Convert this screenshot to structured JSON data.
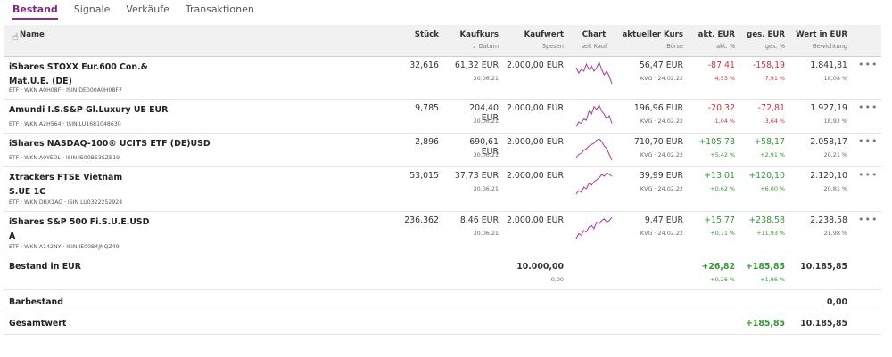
{
  "tabs": [
    "Bestand",
    "Signale",
    "Verkäufe",
    "Transaktionen"
  ],
  "columns": {
    "name": "Name",
    "stueck": "Stück",
    "kaufkurs": "Kaufkurs",
    "kaufkurs_sub": "Datum",
    "kaufwert": "Kaufwert",
    "kaufwert_sub": "Spesen",
    "chart": "Chart",
    "chart_sub": "seit Kauf",
    "kurs": "aktueller Kurs",
    "kurs_sub": "Börse",
    "akt": "akt. EUR",
    "akt_sub": "akt. %",
    "ges": "ges. EUR",
    "ges_sub": "ges. %",
    "wert": "Wert in EUR",
    "wert_sub": "Gewichtung"
  },
  "rows": [
    {
      "name": "iShares STOXX Eur.600 Con.& Mat.U.E. (DE)",
      "meta": "ETF · WKN A0H08F · ISIN DE000A0H08F7",
      "stueck": "32,616",
      "kaufkurs": "61,32 EUR",
      "datum": "30.06.21",
      "kaufwert": "2.000,00 EUR",
      "kurs": "56,47 EUR",
      "boerse": "KVG · 24.02.22",
      "akt_eur": "-87,41",
      "akt_pct": "-4,53 %",
      "ges_eur": "-158,19",
      "ges_pct": "-7,91 %",
      "wert": "1.841,81",
      "gewichtung": "18,08 %",
      "akt_sign": "neg",
      "ges_sign": "neg",
      "spark": [
        5,
        8,
        6,
        7,
        3,
        6,
        4,
        7,
        5,
        2,
        6,
        9,
        7,
        10,
        14
      ]
    },
    {
      "name": "Amundi I.S.S&P Gl.Luxury UE EUR",
      "meta": "ETF · WKN A2H564 · ISIN LU1681048630",
      "stueck": "9,785",
      "kaufkurs": "204,40 EUR",
      "datum": "30.06.21",
      "kaufwert": "2.000,00 EUR",
      "kurs": "196,96 EUR",
      "boerse": "KVG · 24.02.22",
      "akt_eur": "-20,32",
      "akt_pct": "-1,04 %",
      "ges_eur": "-72,81",
      "ges_pct": "-3,64 %",
      "wert": "1.927,19",
      "gewichtung": "18,92 %",
      "akt_sign": "neg",
      "ges_sign": "neg",
      "spark": [
        16,
        13,
        14,
        11,
        12,
        6,
        8,
        3,
        5,
        2,
        6,
        8,
        11,
        9,
        14
      ]
    },
    {
      "name": "iShares NASDAQ-100® UCITS ETF (DE)USD",
      "meta": "ETF · WKN A0YEDL · ISIN IE00B53SZB19",
      "stueck": "2,896",
      "kaufkurs": "690,61 EUR",
      "datum": "30.06.21",
      "kaufwert": "2.000,00 EUR",
      "kurs": "710,70 EUR",
      "boerse": "KVG · 24.02.22",
      "akt_eur": "+105,78",
      "akt_pct": "+5,42 %",
      "ges_eur": "+58,17",
      "ges_pct": "+2,91 %",
      "wert": "2.058,17",
      "gewichtung": "20,21 %",
      "akt_sign": "pos",
      "ges_sign": "pos",
      "spark": [
        15,
        13,
        12,
        10,
        9,
        7,
        6,
        5,
        3,
        2,
        4,
        7,
        9,
        13,
        17
      ]
    },
    {
      "name": "Xtrackers FTSE Vietnam S.UE 1C",
      "meta": "ETF · WKN DBX1AG · ISIN LU0322252924",
      "stueck": "53,015",
      "kaufkurs": "37,73 EUR",
      "datum": "30.06.21",
      "kaufwert": "2.000,00 EUR",
      "kurs": "39,99 EUR",
      "boerse": "KVG · 24.02.22",
      "akt_eur": "+13,01",
      "akt_pct": "+0,62 %",
      "ges_eur": "+120,10",
      "ges_pct": "+6,00 %",
      "wert": "2.120,10",
      "gewichtung": "20,81 %",
      "akt_sign": "pos",
      "ges_sign": "pos",
      "spark": [
        14,
        12,
        13,
        10,
        11,
        8,
        9,
        7,
        6,
        5,
        3,
        4,
        2,
        3,
        4
      ]
    },
    {
      "name": "iShares S&P 500 Fi.S.U.E.USD A",
      "meta": "ETF · WKN A142NY · ISIN IE00B4JNQZ49",
      "stueck": "236,362",
      "kaufkurs": "8,46 EUR",
      "datum": "30.06.21",
      "kaufwert": "2.000,00 EUR",
      "kurs": "9,47 EUR",
      "boerse": "KVG · 24.02.22",
      "akt_eur": "+15,77",
      "akt_pct": "+0,71 %",
      "ges_eur": "+238,58",
      "ges_pct": "+11,93 %",
      "wert": "2.238,58",
      "gewichtung": "21,98 %",
      "akt_sign": "pos",
      "ges_sign": "pos",
      "spark": [
        16,
        13,
        14,
        11,
        12,
        9,
        8,
        10,
        6,
        7,
        5,
        4,
        6,
        5,
        3
      ]
    }
  ],
  "summary": {
    "bestand_label": "Bestand in EUR",
    "bestand_kaufwert": "10.000,00",
    "bestand_spesen": "0,00",
    "bestand_akt_eur": "+26,82",
    "bestand_akt_pct": "+0,26 %",
    "bestand_ges_eur": "+185,85",
    "bestand_ges_pct": "+1,86 %",
    "bestand_wert": "10.185,85",
    "barbestand_label": "Barbestand",
    "barbestand_wert": "0,00",
    "gesamt_label": "Gesamtwert",
    "gesamt_ges_eur": "+185,85",
    "gesamt_wert": "10.185,85"
  },
  "more_label": "•••",
  "colors": {
    "accent": "#8d2b8f",
    "negative": "#d0313a",
    "positive": "#2e9a2e",
    "spark": "#b0359c"
  }
}
